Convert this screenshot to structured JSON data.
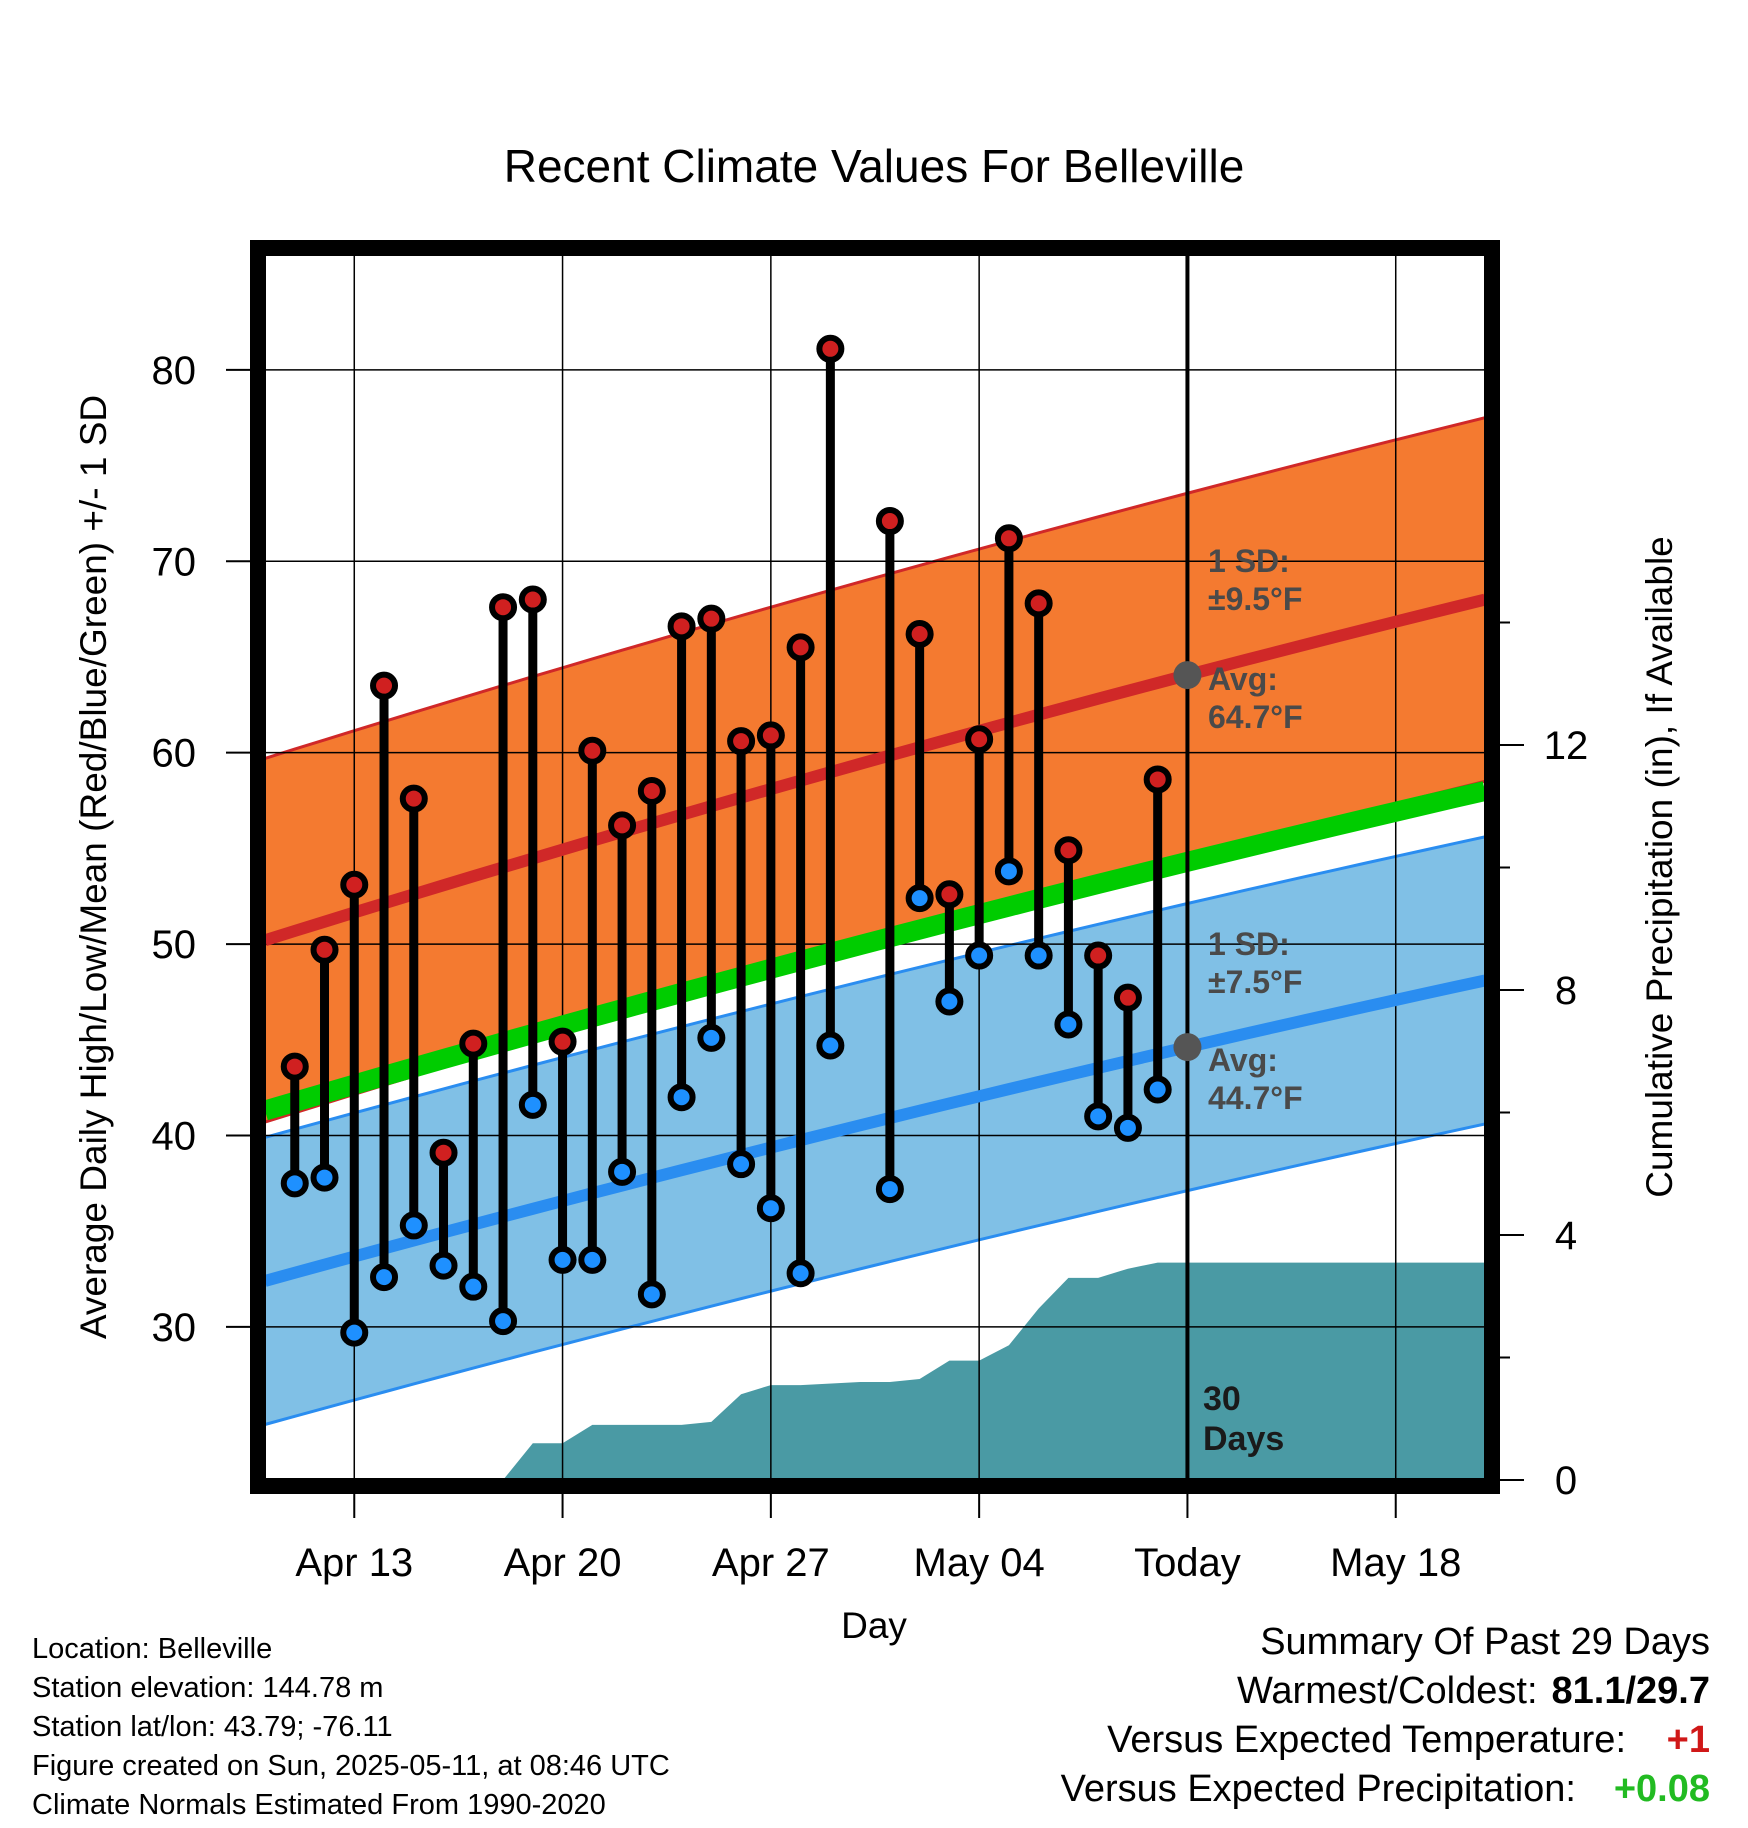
{
  "chart_data": {
    "type": "line",
    "title": "Recent Climate Values For Belleville",
    "xlabel": "Day",
    "ylabel": "Average Daily High/Low/Mean (Red/Blue/Green) +/- 1 SD",
    "y2label": "Cumulative Precipitation (in), If Available",
    "xlim": [
      "2025-04-10",
      "2025-05-21"
    ],
    "ylim": [
      22,
      86
    ],
    "y2lim": [
      0,
      20
    ],
    "x_tick_labels": [
      "Apr 13",
      "Apr 20",
      "Apr 27",
      "May 04",
      "Today",
      "May 18"
    ],
    "y_ticks": [
      30,
      40,
      50,
      60,
      70,
      80
    ],
    "y2_ticks": [
      0,
      4,
      8,
      12
    ],
    "grid": true,
    "normals": {
      "high_avg": {
        "start": 50.2,
        "end": 68.0
      },
      "low_avg": {
        "start": 32.4,
        "end": 48.1
      },
      "mean_avg": {
        "start": 41.3,
        "end": 58.0
      },
      "high_sd": 9.5,
      "low_sd": 7.5
    },
    "daily": [
      {
        "date": "2025-04-11",
        "high": 43.6,
        "low": 37.5
      },
      {
        "date": "2025-04-12",
        "high": 49.7,
        "low": 37.8
      },
      {
        "date": "2025-04-13",
        "high": 53.1,
        "low": 29.7
      },
      {
        "date": "2025-04-14",
        "high": 63.5,
        "low": 32.6
      },
      {
        "date": "2025-04-15",
        "high": 57.6,
        "low": 35.3
      },
      {
        "date": "2025-04-16",
        "high": 39.1,
        "low": 33.2
      },
      {
        "date": "2025-04-17",
        "high": 44.8,
        "low": 32.1
      },
      {
        "date": "2025-04-18",
        "high": 67.6,
        "low": 30.3
      },
      {
        "date": "2025-04-19",
        "high": 68.0,
        "low": 41.6
      },
      {
        "date": "2025-04-20",
        "high": 44.9,
        "low": 33.5
      },
      {
        "date": "2025-04-21",
        "high": 60.1,
        "low": 33.5
      },
      {
        "date": "2025-04-22",
        "high": 56.2,
        "low": 38.1
      },
      {
        "date": "2025-04-23",
        "high": 58.0,
        "low": 31.7
      },
      {
        "date": "2025-04-24",
        "high": 66.6,
        "low": 42.0
      },
      {
        "date": "2025-04-25",
        "high": 67.0,
        "low": 45.1
      },
      {
        "date": "2025-04-26",
        "high": 60.6,
        "low": 38.5
      },
      {
        "date": "2025-04-27",
        "high": 60.9,
        "low": 36.2
      },
      {
        "date": "2025-04-28",
        "high": 65.5,
        "low": 32.8
      },
      {
        "date": "2025-04-29",
        "high": 81.1,
        "low": 44.7
      },
      {
        "date": "2025-05-01",
        "high": 72.1,
        "low": 37.2
      },
      {
        "date": "2025-05-02",
        "high": 66.2,
        "low": 52.4
      },
      {
        "date": "2025-05-03",
        "high": 52.6,
        "low": 47.0
      },
      {
        "date": "2025-05-04",
        "high": 60.7,
        "low": 49.4
      },
      {
        "date": "2025-05-05",
        "high": 71.2,
        "low": 53.8
      },
      {
        "date": "2025-05-06",
        "high": 67.8,
        "low": 49.4
      },
      {
        "date": "2025-05-07",
        "high": 54.9,
        "low": 45.8
      },
      {
        "date": "2025-05-08",
        "high": 49.4,
        "low": 41.0
      },
      {
        "date": "2025-05-09",
        "high": 47.2,
        "low": 40.4
      },
      {
        "date": "2025-05-10",
        "high": 58.6,
        "low": 42.4
      }
    ],
    "precipitation_cumulative": [
      {
        "date": "2025-04-18",
        "value": 0.0
      },
      {
        "date": "2025-04-19",
        "value": 0.6
      },
      {
        "date": "2025-04-20",
        "value": 0.6
      },
      {
        "date": "2025-04-21",
        "value": 0.9
      },
      {
        "date": "2025-04-24",
        "value": 0.9
      },
      {
        "date": "2025-04-25",
        "value": 0.95
      },
      {
        "date": "2025-04-26",
        "value": 1.4
      },
      {
        "date": "2025-04-27",
        "value": 1.55
      },
      {
        "date": "2025-04-28",
        "value": 1.55
      },
      {
        "date": "2025-04-30",
        "value": 1.6
      },
      {
        "date": "2025-05-01",
        "value": 1.6
      },
      {
        "date": "2025-05-02",
        "value": 1.65
      },
      {
        "date": "2025-05-03",
        "value": 1.95
      },
      {
        "date": "2025-05-04",
        "value": 1.95
      },
      {
        "date": "2025-05-05",
        "value": 2.2
      },
      {
        "date": "2025-05-06",
        "value": 2.8
      },
      {
        "date": "2025-05-07",
        "value": 3.3
      },
      {
        "date": "2025-05-08",
        "value": 3.3
      },
      {
        "date": "2025-05-09",
        "value": 3.45
      },
      {
        "date": "2025-05-10",
        "value": 3.55
      },
      {
        "date": "2025-05-21",
        "value": 3.55
      }
    ],
    "annotations": {
      "high_sd": [
        "1 SD:",
        "±9.5°F"
      ],
      "high_avg": [
        "Avg:",
        "64.7°F"
      ],
      "low_sd": [
        "1 SD:",
        "±7.5°F"
      ],
      "low_avg": [
        "Avg:",
        "44.7°F"
      ],
      "window": [
        "30",
        "Days"
      ]
    },
    "colors": {
      "high_band": "#f47a30",
      "high_line": "#d02828",
      "low_band": "#80c0e6",
      "low_line": "#2a8df0",
      "mean_line": "#00cc00",
      "precip": "#4a9aa4",
      "high_marker": "#d02020",
      "low_marker": "#1e90ff"
    }
  },
  "footer": {
    "location": "Location: Belleville",
    "elevation": "Station elevation: 144.78 m",
    "latlon": "Station lat/lon: 43.79; -76.11",
    "created": "Figure created on Sun, 2025-05-11, at 08:46 UTC",
    "normals": "Climate Normals Estimated From 1990-2020"
  },
  "summary": {
    "heading": "Summary Of Past 29 Days",
    "warmest_label": "Warmest/Coldest:",
    "warmest_value": "81.1/29.7",
    "temp_label": "Versus Expected Temperature:",
    "temp_value": "+1",
    "precip_label": "Versus Expected Precipitation:",
    "precip_value": "+0.08"
  }
}
